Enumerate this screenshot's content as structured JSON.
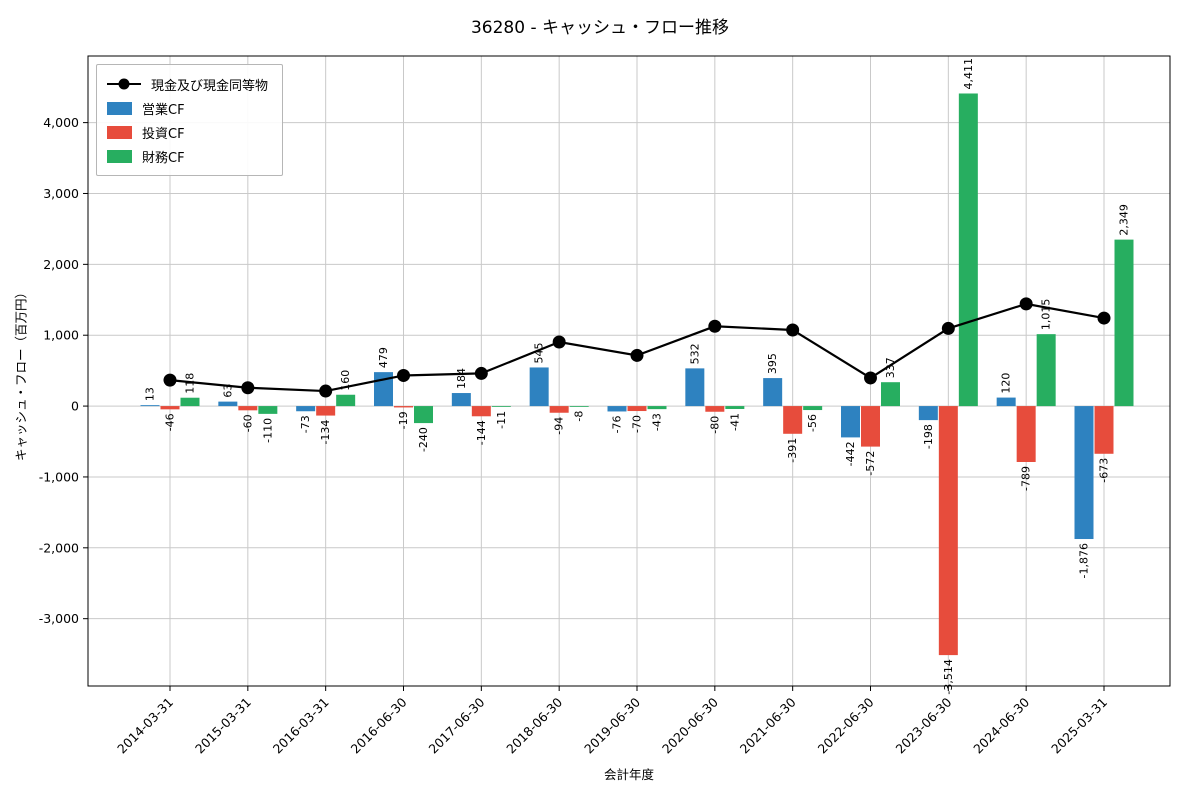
{
  "chart_data": {
    "type": "bar",
    "title": "36280 - キャッシュ・フロー推移",
    "xlabel": "会計年度",
    "ylabel": "キャッシュ・フロー（百万円）",
    "categories": [
      "2014-03-31",
      "2015-03-31",
      "2016-03-31",
      "2016-06-30",
      "2017-06-30",
      "2018-06-30",
      "2019-06-30",
      "2020-06-30",
      "2021-06-30",
      "2022-06-30",
      "2023-06-30",
      "2024-06-30",
      "2025-03-31"
    ],
    "series": [
      {
        "name": "営業CF",
        "type": "bar",
        "color": "#2e82c0",
        "values": [
          13,
          63,
          -73,
          479,
          184,
          545,
          -76,
          532,
          395,
          -442,
          -198,
          120,
          -1876
        ]
      },
      {
        "name": "投資CF",
        "type": "bar",
        "color": "#e74c3c",
        "values": [
          -46,
          -60,
          -134,
          -19,
          -144,
          -94,
          -70,
          -80,
          -391,
          -572,
          -3514,
          -789,
          -673
        ]
      },
      {
        "name": "財務CF",
        "type": "bar",
        "color": "#27ae60",
        "values": [
          118,
          -110,
          160,
          -240,
          -11,
          -8,
          -43,
          -41,
          -56,
          337,
          4411,
          1015,
          2349
        ]
      }
    ],
    "line_series": {
      "name": "現金及び現金同等物",
      "type": "line",
      "color": "#000000",
      "values": [
        366,
        259,
        212,
        432,
        461,
        904,
        715,
        1126,
        1074,
        397,
        1096,
        1442,
        1242
      ]
    },
    "ylim": [
      -3950,
      4940
    ],
    "yticks": [
      -3000,
      -2000,
      -1000,
      0,
      1000,
      2000,
      3000,
      4000
    ],
    "grid": true,
    "legend_position": "upper-left",
    "grid_color": "#c9c9c9"
  }
}
